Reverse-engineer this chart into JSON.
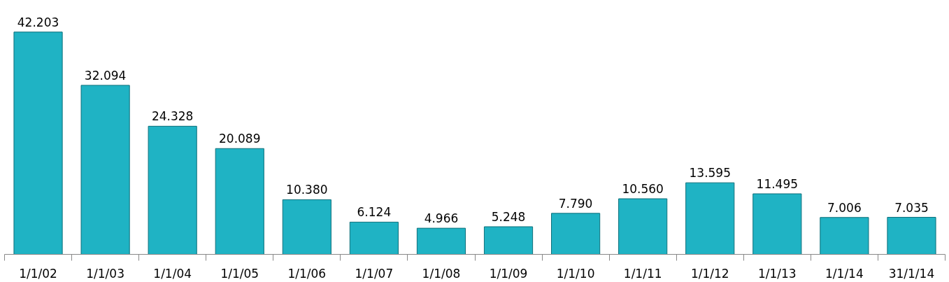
{
  "chart_data": {
    "type": "bar",
    "categories": [
      "1/1/02",
      "1/1/03",
      "1/1/04",
      "1/1/05",
      "1/1/06",
      "1/1/07",
      "1/1/08",
      "1/1/09",
      "1/1/10",
      "1/1/11",
      "1/1/12",
      "1/1/13",
      "1/1/14",
      "31/1/14"
    ],
    "values": [
      42.203,
      32.094,
      24.328,
      20.089,
      10.38,
      6.124,
      4.966,
      5.248,
      7.79,
      10.56,
      13.595,
      11.495,
      7.006,
      7.035
    ],
    "value_labels": [
      "42.203",
      "32.094",
      "24.328",
      "20.089",
      "10.380",
      "6.124",
      "4.966",
      "5.248",
      "7.790",
      "10.560",
      "13.595",
      "11.495",
      "7.006",
      "7.035"
    ],
    "color": "#1fb3c4",
    "grid": false
  }
}
